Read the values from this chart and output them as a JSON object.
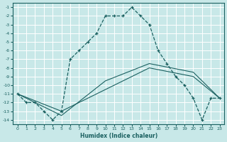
{
  "xlabel": "Humidex (Indice chaleur)",
  "bg_color": "#c8e8e8",
  "grid_color": "#ffffff",
  "line_color": "#1a6060",
  "xlim": [
    -0.5,
    23.5
  ],
  "ylim": [
    -14.5,
    -0.5
  ],
  "xticks": [
    0,
    1,
    2,
    3,
    4,
    5,
    6,
    7,
    8,
    9,
    10,
    11,
    12,
    13,
    14,
    15,
    16,
    17,
    18,
    19,
    20,
    21,
    22,
    23
  ],
  "yticks": [
    -1,
    -2,
    -3,
    -4,
    -5,
    -6,
    -7,
    -8,
    -9,
    -10,
    -11,
    -12,
    -13,
    -14
  ],
  "main_x": [
    0,
    1,
    2,
    3,
    4,
    5,
    6,
    7,
    8,
    9,
    10,
    11,
    12,
    13,
    14,
    15,
    16,
    17,
    18,
    19,
    20,
    21,
    22,
    23
  ],
  "main_y": [
    -11,
    -12,
    -12,
    -13,
    -14,
    -13,
    -7,
    -6,
    -5,
    -4,
    -2,
    -2,
    -2,
    -1,
    -2,
    -3,
    -6,
    -7.5,
    -9,
    -10,
    -11.5,
    -14,
    -11.5,
    -11.5
  ],
  "flat1_x": [
    0,
    5,
    10,
    15,
    20,
    23
  ],
  "flat1_y": [
    -11,
    -13,
    -10.5,
    -8,
    -9,
    -11.5
  ],
  "flat2_x": [
    0,
    5,
    10,
    15,
    20,
    23
  ],
  "flat2_y": [
    -11,
    -13.5,
    -9.5,
    -7.5,
    -8.5,
    -11.5
  ]
}
